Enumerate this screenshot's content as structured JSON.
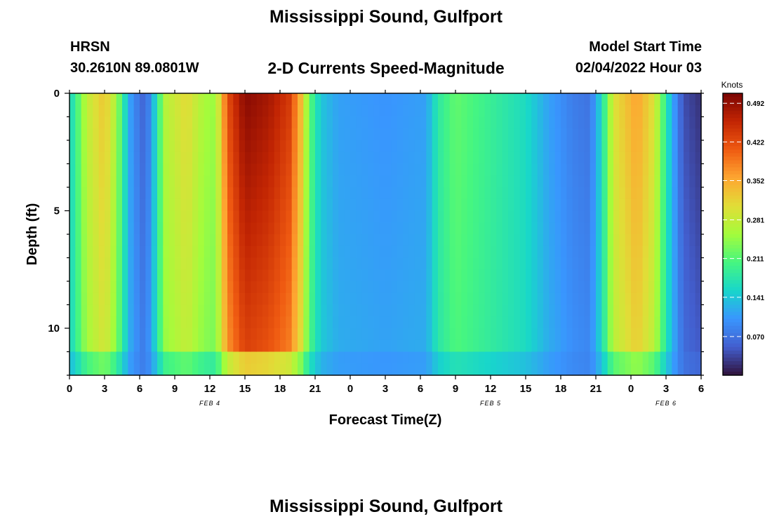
{
  "header": {
    "title": "Mississippi Sound, Gulfport",
    "station_code": "HRSN",
    "coords": "30.2610N  89.0801W",
    "subtitle": "2-D Currents Speed-Magnitude",
    "model_label": "Model Start Time",
    "model_time": "02/04/2022 Hour 03"
  },
  "footer": {
    "title_repeat": "Mississippi Sound, Gulfport"
  },
  "chart_data": {
    "type": "heatmap",
    "title": "2-D Currents Speed-Magnitude",
    "xlabel": "Forecast Time(Z)",
    "ylabel": "Depth (ft)",
    "x_ticks": [
      "0",
      "3",
      "6",
      "9",
      "12",
      "15",
      "18",
      "21",
      "0",
      "3",
      "6",
      "9",
      "12",
      "15",
      "18",
      "21",
      "0",
      "3",
      "6"
    ],
    "x_range_hours": [
      0,
      54
    ],
    "date_labels": [
      {
        "label": "FEB 4",
        "at_hour": 12
      },
      {
        "label": "FEB 5",
        "at_hour": 36
      },
      {
        "label": "FEB 6",
        "at_hour": 51
      }
    ],
    "y_ticks": [
      "0",
      "5",
      "10"
    ],
    "ylim_ft": [
      0,
      12
    ],
    "colorbar": {
      "label": "Knots",
      "ticks": [
        "0.492",
        "0.422",
        "0.352",
        "0.281",
        "0.211",
        "0.141",
        "0.070"
      ],
      "range": [
        0,
        0.51
      ]
    },
    "surface_speed_profile": {
      "hours": [
        0,
        0.6,
        1.5,
        3,
        4,
        4.6,
        5.3,
        6.2,
        7,
        7.4,
        8.2,
        10,
        11.5,
        12.5,
        13.5,
        15,
        17,
        18.8,
        19.8,
        20.5,
        21.5,
        23,
        27,
        30.5,
        31.5,
        33,
        35,
        39,
        41,
        43,
        44.5,
        45.5,
        46.5,
        48.5,
        50,
        51,
        51.5,
        52.5,
        54
      ],
      "knots": [
        0.15,
        0.2,
        0.28,
        0.33,
        0.26,
        0.18,
        0.1,
        0.06,
        0.09,
        0.17,
        0.27,
        0.31,
        0.26,
        0.25,
        0.42,
        0.5,
        0.48,
        0.44,
        0.34,
        0.22,
        0.14,
        0.11,
        0.1,
        0.11,
        0.18,
        0.22,
        0.2,
        0.16,
        0.11,
        0.08,
        0.07,
        0.16,
        0.3,
        0.36,
        0.3,
        0.18,
        0.12,
        0.04,
        0.02
      ]
    }
  }
}
